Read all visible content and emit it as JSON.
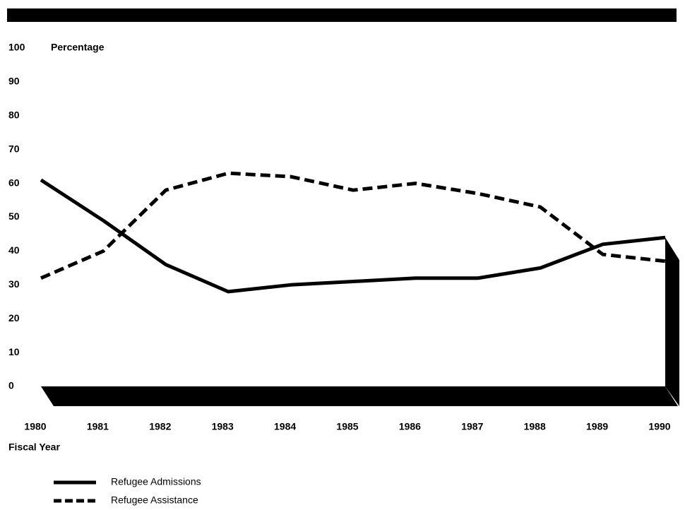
{
  "chart_data": {
    "type": "line",
    "y_label": "Percentage",
    "x_label": "Fiscal Year",
    "categories": [
      "1980",
      "1981",
      "1982",
      "1983",
      "1984",
      "1985",
      "1986",
      "1987",
      "1988",
      "1989",
      "1990"
    ],
    "series": [
      {
        "name": "Refugee Admissions",
        "color": "#000000",
        "line_style": "solid",
        "values": [
          61,
          49,
          36,
          28,
          30,
          31,
          32,
          32,
          35,
          42,
          44
        ]
      },
      {
        "name": "Refugee Assistance",
        "color": "#000000",
        "line_style": "dashed",
        "values": [
          32,
          40,
          58,
          63,
          62,
          58,
          60,
          57,
          53,
          39,
          37
        ]
      }
    ],
    "ylim": [
      0,
      100
    ],
    "yticks": [
      0,
      10,
      20,
      30,
      40,
      50,
      60,
      70,
      80,
      90,
      100
    ],
    "grid": false
  }
}
